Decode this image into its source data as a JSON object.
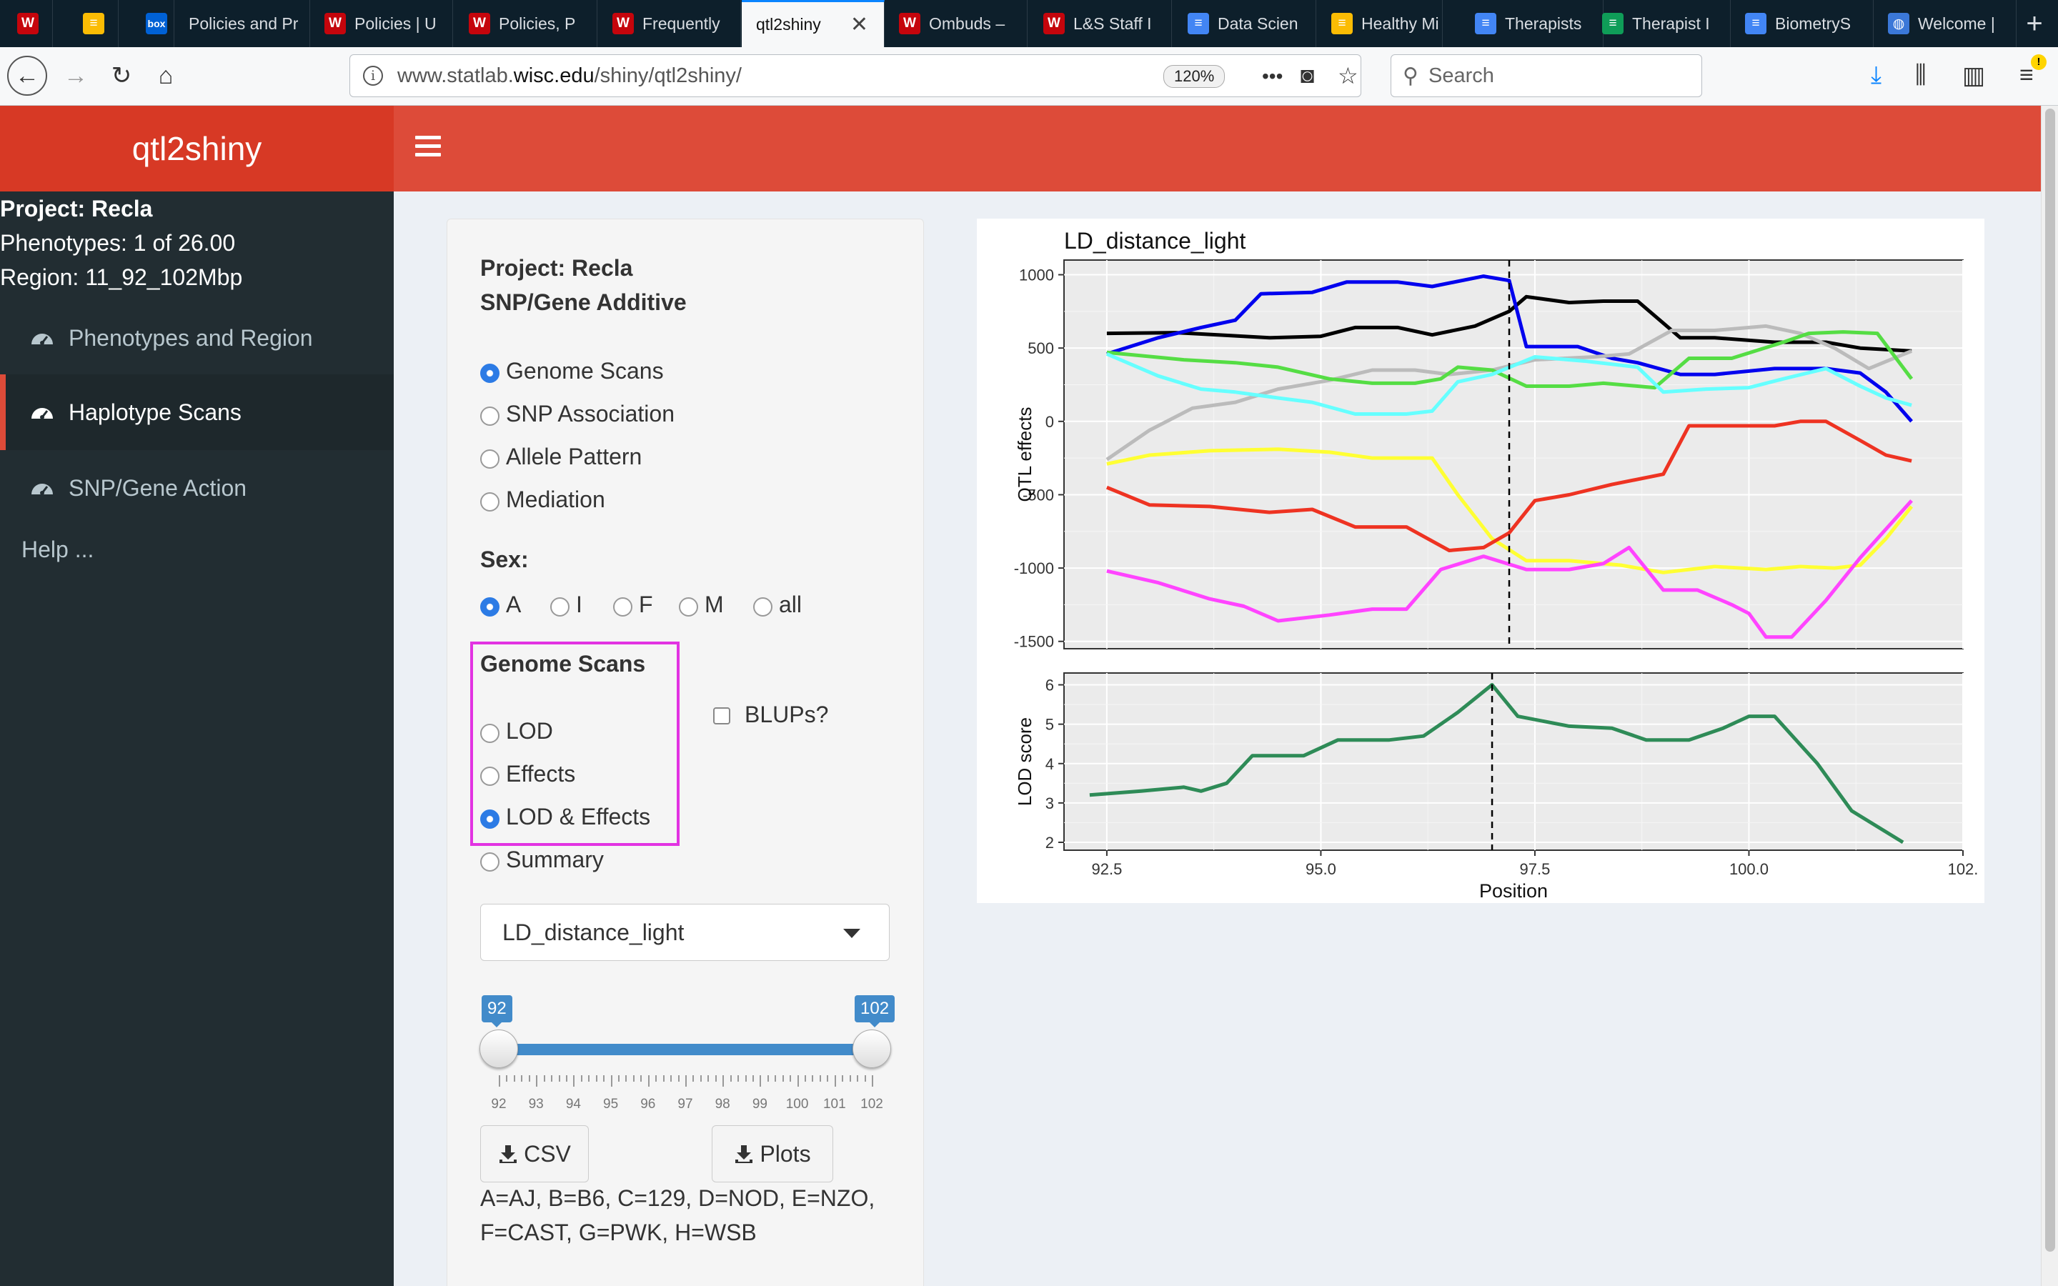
{
  "browser": {
    "tabs": [
      {
        "title": "",
        "icon": "uw-crest-icon",
        "color": "#c5050c"
      },
      {
        "title": "",
        "icon": "google-drive-icon",
        "color": "#fbbc04"
      },
      {
        "title": "",
        "icon": "box-icon",
        "color": "#0061d5"
      },
      {
        "title": "Policies and Pr",
        "icon": "none",
        "color": ""
      },
      {
        "title": "Policies | U",
        "icon": "uw-icon",
        "color": "#c5050c"
      },
      {
        "title": "Policies, P",
        "icon": "uw-crest-icon",
        "color": "#c5050c"
      },
      {
        "title": "Frequently",
        "icon": "uw-crest-icon",
        "color": "#c5050c"
      },
      {
        "title": "qtl2shiny",
        "icon": "none",
        "color": ""
      },
      {
        "title": "Ombuds –",
        "icon": "uw-crest-icon",
        "color": "#c5050c"
      },
      {
        "title": "L&S Staff I",
        "icon": "uw-crest-icon",
        "color": "#c5050c"
      },
      {
        "title": "Data Scien",
        "icon": "google-docs-icon",
        "color": "#4285f4"
      },
      {
        "title": "Healthy Mi",
        "icon": "google-drive-icon",
        "color": "#fbbc04"
      },
      {
        "title": "Therapists",
        "icon": "google-docs-icon",
        "color": "#4285f4"
      },
      {
        "title": "Therapist I",
        "icon": "google-sheets-icon",
        "color": "#0f9d58"
      },
      {
        "title": "BiometryS",
        "icon": "google-docs-icon",
        "color": "#4285f4"
      },
      {
        "title": "Welcome |",
        "icon": "globe-icon",
        "color": "#3b78d8"
      }
    ],
    "url_prefix": "www.statlab.",
    "url_host": "wisc.edu",
    "url_suffix": "/shiny/qtl2shiny/",
    "zoom": "120%",
    "search_placeholder": "Search",
    "page_actions": "•••"
  },
  "app": {
    "logo": "qtl2shiny",
    "sidebar_info": {
      "project": "Project: Recla",
      "phenotypes": "Phenotypes: 1 of 26.00",
      "region": "Region: 11_92_102Mbp"
    },
    "nav": [
      {
        "label": "Phenotypes and Region",
        "icon": "dashboard-icon",
        "active": false
      },
      {
        "label": "Haplotype Scans",
        "icon": "dashboard-icon",
        "active": true
      },
      {
        "label": "SNP/Gene Action",
        "icon": "dashboard-icon",
        "active": false
      }
    ],
    "help": "Help ..."
  },
  "panel": {
    "project": "Project: Recla",
    "subtitle": "SNP/Gene Additive",
    "analysis_options": [
      "Genome Scans",
      "SNP Association",
      "Allele Pattern",
      "Mediation"
    ],
    "analysis_selected": "Genome Scans",
    "sex_label": "Sex:",
    "sex_options": [
      "A",
      "I",
      "F",
      "M",
      "all"
    ],
    "sex_selected": "A",
    "scan_label": "Genome Scans",
    "scan_options": [
      "LOD",
      "Effects",
      "LOD & Effects",
      "Summary"
    ],
    "scan_selected": "LOD & Effects",
    "blups_label": "BLUPs?",
    "blups_checked": false,
    "phenotype_select": "LD_distance_light",
    "range_min": "92",
    "range_max": "102",
    "ticks": [
      "92",
      "93",
      "94",
      "95",
      "96",
      "97",
      "98",
      "99",
      "100",
      "101",
      "102"
    ],
    "csv_button": "CSV",
    "plots_button": "Plots",
    "legend_line1": "A=AJ, B=B6, C=129, D=NOD, E=NZO,",
    "legend_line2": "F=CAST, G=PWK, H=WSB"
  },
  "chart_data": [
    {
      "type": "line",
      "title": "LD_distance_light",
      "xlabel": "",
      "ylabel": "QTL effects",
      "xlim": [
        92.0,
        102.5
      ],
      "ylim": [
        -1550,
        1100
      ],
      "yticks": [
        1000,
        500,
        0,
        -500,
        -1000,
        -1500
      ],
      "grid": true,
      "vline": 97.2,
      "series": [
        {
          "color": "#000000",
          "points": [
            [
              92.5,
              600
            ],
            [
              93.3,
              605
            ],
            [
              93.8,
              590
            ],
            [
              94.4,
              570
            ],
            [
              95.0,
              580
            ],
            [
              95.4,
              640
            ],
            [
              95.9,
              640
            ],
            [
              96.3,
              590
            ],
            [
              96.8,
              650
            ],
            [
              97.2,
              750
            ],
            [
              97.4,
              850
            ],
            [
              97.9,
              810
            ],
            [
              98.3,
              820
            ],
            [
              98.7,
              820
            ],
            [
              99.2,
              570
            ],
            [
              99.6,
              570
            ],
            [
              100.3,
              540
            ],
            [
              100.9,
              540
            ],
            [
              101.3,
              500
            ],
            [
              101.9,
              480
            ]
          ]
        },
        {
          "color": "#0000ee",
          "points": [
            [
              92.5,
              460
            ],
            [
              93.1,
              570
            ],
            [
              93.6,
              640
            ],
            [
              94.0,
              690
            ],
            [
              94.3,
              870
            ],
            [
              94.9,
              880
            ],
            [
              95.3,
              950
            ],
            [
              95.9,
              950
            ],
            [
              96.3,
              920
            ],
            [
              96.9,
              990
            ],
            [
              97.2,
              960
            ],
            [
              97.4,
              510
            ],
            [
              98.0,
              510
            ],
            [
              98.4,
              430
            ],
            [
              98.7,
              400
            ],
            [
              99.2,
              320
            ],
            [
              99.6,
              320
            ],
            [
              100.3,
              360
            ],
            [
              100.9,
              360
            ],
            [
              101.3,
              330
            ],
            [
              101.6,
              200
            ],
            [
              101.9,
              0
            ]
          ]
        },
        {
          "color": "#bbbbbb",
          "points": [
            [
              92.5,
              -260
            ],
            [
              93.0,
              -60
            ],
            [
              93.5,
              90
            ],
            [
              94.0,
              130
            ],
            [
              94.5,
              220
            ],
            [
              95.1,
              280
            ],
            [
              95.6,
              350
            ],
            [
              96.1,
              350
            ],
            [
              96.5,
              320
            ],
            [
              97.0,
              350
            ],
            [
              97.5,
              420
            ],
            [
              98.2,
              440
            ],
            [
              98.6,
              460
            ],
            [
              99.1,
              620
            ],
            [
              99.6,
              620
            ],
            [
              100.2,
              650
            ],
            [
              100.6,
              600
            ],
            [
              101.0,
              500
            ],
            [
              101.4,
              360
            ],
            [
              101.9,
              480
            ]
          ]
        },
        {
          "color": "#55dd44",
          "points": [
            [
              92.5,
              470
            ],
            [
              93.4,
              420
            ],
            [
              94.0,
              400
            ],
            [
              94.5,
              370
            ],
            [
              95.1,
              290
            ],
            [
              95.6,
              260
            ],
            [
              96.1,
              260
            ],
            [
              96.4,
              290
            ],
            [
              96.6,
              370
            ],
            [
              97.0,
              350
            ],
            [
              97.4,
              240
            ],
            [
              97.9,
              240
            ],
            [
              98.3,
              260
            ],
            [
              98.9,
              230
            ],
            [
              99.3,
              430
            ],
            [
              99.8,
              430
            ],
            [
              100.4,
              540
            ],
            [
              100.7,
              600
            ],
            [
              101.1,
              610
            ],
            [
              101.5,
              600
            ],
            [
              101.9,
              290
            ]
          ]
        },
        {
          "color": "#66ffff",
          "points": [
            [
              92.5,
              460
            ],
            [
              93.1,
              310
            ],
            [
              93.6,
              220
            ],
            [
              94.0,
              200
            ],
            [
              94.5,
              160
            ],
            [
              94.9,
              130
            ],
            [
              95.4,
              50
            ],
            [
              96.0,
              50
            ],
            [
              96.3,
              70
            ],
            [
              96.6,
              270
            ],
            [
              97.0,
              320
            ],
            [
              97.5,
              440
            ],
            [
              98.1,
              410
            ],
            [
              98.7,
              370
            ],
            [
              99.0,
              200
            ],
            [
              99.5,
              220
            ],
            [
              100.0,
              230
            ],
            [
              100.4,
              290
            ],
            [
              100.9,
              360
            ],
            [
              101.3,
              240
            ],
            [
              101.6,
              160
            ],
            [
              101.9,
              110
            ]
          ]
        },
        {
          "color": "#ffff33",
          "points": [
            [
              92.5,
              -290
            ],
            [
              93.0,
              -230
            ],
            [
              93.7,
              -200
            ],
            [
              94.5,
              -190
            ],
            [
              95.1,
              -210
            ],
            [
              95.6,
              -250
            ],
            [
              96.0,
              -250
            ],
            [
              96.3,
              -250
            ],
            [
              96.6,
              -500
            ],
            [
              97.0,
              -800
            ],
            [
              97.4,
              -950
            ],
            [
              97.9,
              -950
            ],
            [
              98.5,
              -980
            ],
            [
              99.0,
              -1030
            ],
            [
              99.6,
              -990
            ],
            [
              100.2,
              -1010
            ],
            [
              100.6,
              -990
            ],
            [
              101.0,
              -1000
            ],
            [
              101.3,
              -980
            ],
            [
              101.6,
              -800
            ],
            [
              101.9,
              -580
            ]
          ]
        },
        {
          "color": "#ee3322",
          "points": [
            [
              92.5,
              -450
            ],
            [
              93.0,
              -570
            ],
            [
              93.7,
              -580
            ],
            [
              94.4,
              -620
            ],
            [
              94.9,
              -600
            ],
            [
              95.4,
              -720
            ],
            [
              96.0,
              -720
            ],
            [
              96.5,
              -880
            ],
            [
              96.9,
              -860
            ],
            [
              97.2,
              -760
            ],
            [
              97.5,
              -540
            ],
            [
              97.9,
              -500
            ],
            [
              98.4,
              -430
            ],
            [
              99.0,
              -360
            ],
            [
              99.3,
              -30
            ],
            [
              99.8,
              -30
            ],
            [
              100.3,
              -30
            ],
            [
              100.6,
              0
            ],
            [
              100.9,
              0
            ],
            [
              101.3,
              -130
            ],
            [
              101.6,
              -230
            ],
            [
              101.9,
              -270
            ]
          ]
        },
        {
          "color": "#ff44ff",
          "points": [
            [
              92.5,
              -1020
            ],
            [
              93.1,
              -1100
            ],
            [
              93.7,
              -1210
            ],
            [
              94.1,
              -1260
            ],
            [
              94.5,
              -1360
            ],
            [
              95.1,
              -1320
            ],
            [
              95.6,
              -1280
            ],
            [
              96.0,
              -1280
            ],
            [
              96.4,
              -1010
            ],
            [
              96.9,
              -920
            ],
            [
              97.4,
              -1010
            ],
            [
              97.9,
              -1010
            ],
            [
              98.3,
              -970
            ],
            [
              98.6,
              -860
            ],
            [
              99.0,
              -1150
            ],
            [
              99.4,
              -1150
            ],
            [
              99.8,
              -1250
            ],
            [
              100.0,
              -1310
            ],
            [
              100.2,
              -1470
            ],
            [
              100.5,
              -1470
            ],
            [
              100.9,
              -1220
            ],
            [
              101.3,
              -930
            ],
            [
              101.9,
              -540
            ]
          ]
        }
      ]
    },
    {
      "type": "line",
      "title": "",
      "xlabel": "Position",
      "ylabel": "LOD score",
      "xlim": [
        92.0,
        102.5
      ],
      "ylim": [
        1.8,
        6.3
      ],
      "xticks": [
        "92.5",
        "95.0",
        "97.5",
        "100.0",
        "102."
      ],
      "yticks": [
        6,
        5,
        4,
        3,
        2
      ],
      "grid": true,
      "vline": 97.0,
      "series": [
        {
          "color": "#2e8b57",
          "points": [
            [
              92.3,
              3.2
            ],
            [
              92.9,
              3.3
            ],
            [
              93.4,
              3.4
            ],
            [
              93.6,
              3.3
            ],
            [
              93.9,
              3.5
            ],
            [
              94.2,
              4.2
            ],
            [
              94.8,
              4.2
            ],
            [
              95.2,
              4.6
            ],
            [
              95.8,
              4.6
            ],
            [
              96.2,
              4.7
            ],
            [
              96.6,
              5.3
            ],
            [
              97.0,
              6.0
            ],
            [
              97.3,
              5.2
            ],
            [
              97.9,
              4.95
            ],
            [
              98.4,
              4.9
            ],
            [
              98.8,
              4.6
            ],
            [
              99.3,
              4.6
            ],
            [
              99.7,
              4.9
            ],
            [
              100.0,
              5.2
            ],
            [
              100.3,
              5.2
            ],
            [
              100.8,
              4.0
            ],
            [
              101.2,
              2.8
            ],
            [
              101.8,
              2.0
            ]
          ]
        }
      ]
    }
  ]
}
